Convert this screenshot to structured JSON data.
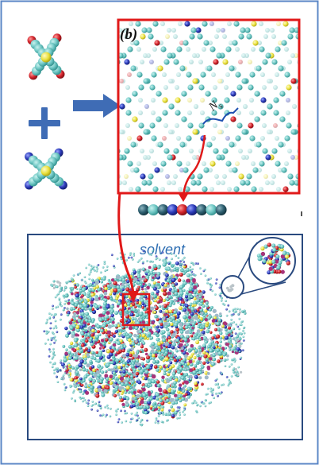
{
  "panel_label": "(b)",
  "spacer_label": "N",
  "spacer_subscript": "s",
  "solvent_label": "solvent",
  "colors": {
    "frame_blue": "#2a4a7f",
    "outer_frame": "#5a86c6",
    "inset_red": "#e01919",
    "arrow_blue": "#3f6cb5",
    "bead_teal": "#6fc7c4",
    "bead_yellow": "#e8df3a",
    "bead_red": "#d2232a",
    "bead_blue": "#2b3bb8",
    "bead_magenta": "#a8337a",
    "solvent_text": "#2f6fb3"
  },
  "icons": [
    "plus-sign",
    "arrow-right",
    "red-curved-arrow"
  ]
}
